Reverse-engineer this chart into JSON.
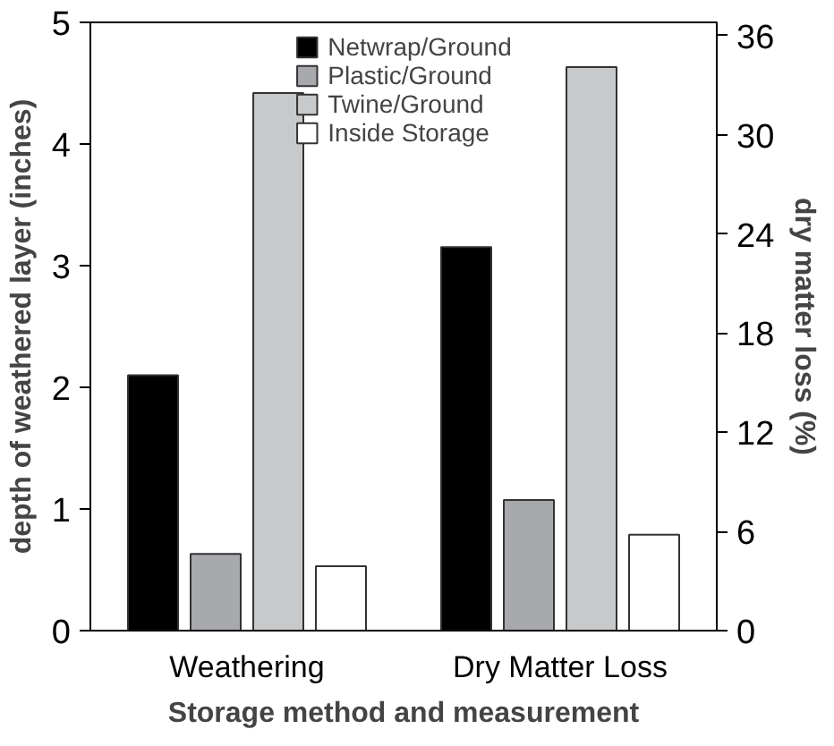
{
  "chart_data": {
    "type": "bar",
    "xlabel": "Storage method and measurement",
    "ylabel": "depth of weathered layer (inches)",
    "y2label": "dry matter loss (%)",
    "categories": [
      "Weathering",
      "Dry Matter Loss"
    ],
    "series": [
      {
        "name": "Netwrap/Ground",
        "color": "#000000",
        "values": [
          2.1,
          null
        ]
      },
      {
        "name": "Plastic/Ground",
        "color": "#a7a9ac",
        "values": [
          0.63,
          null
        ]
      },
      {
        "name": "Twine/Ground",
        "color": "#c8c9cb",
        "values": [
          4.42,
          null
        ]
      },
      {
        "name": "Inside Storage",
        "color": "#ffffff",
        "values": [
          0.53,
          null
        ]
      },
      {
        "color": "#000000",
        "axis": "y2",
        "values": [
          null,
          23.2
        ]
      },
      {
        "color": "#a7a9ac",
        "axis": "y2",
        "values": [
          null,
          7.9
        ]
      },
      {
        "color": "#c8c9cb",
        "axis": "y2",
        "values": [
          null,
          34.1
        ]
      },
      {
        "color": "#ffffff",
        "axis": "y2",
        "values": [
          null,
          5.8
        ]
      }
    ],
    "ylim": [
      0,
      5
    ],
    "yticks": [
      0,
      1,
      2,
      3,
      4,
      5
    ],
    "y2lim": [
      0,
      36.8
    ],
    "y2ticks": [
      0,
      6,
      12,
      18,
      24,
      30,
      36
    ],
    "grid": false,
    "legend": "top"
  }
}
